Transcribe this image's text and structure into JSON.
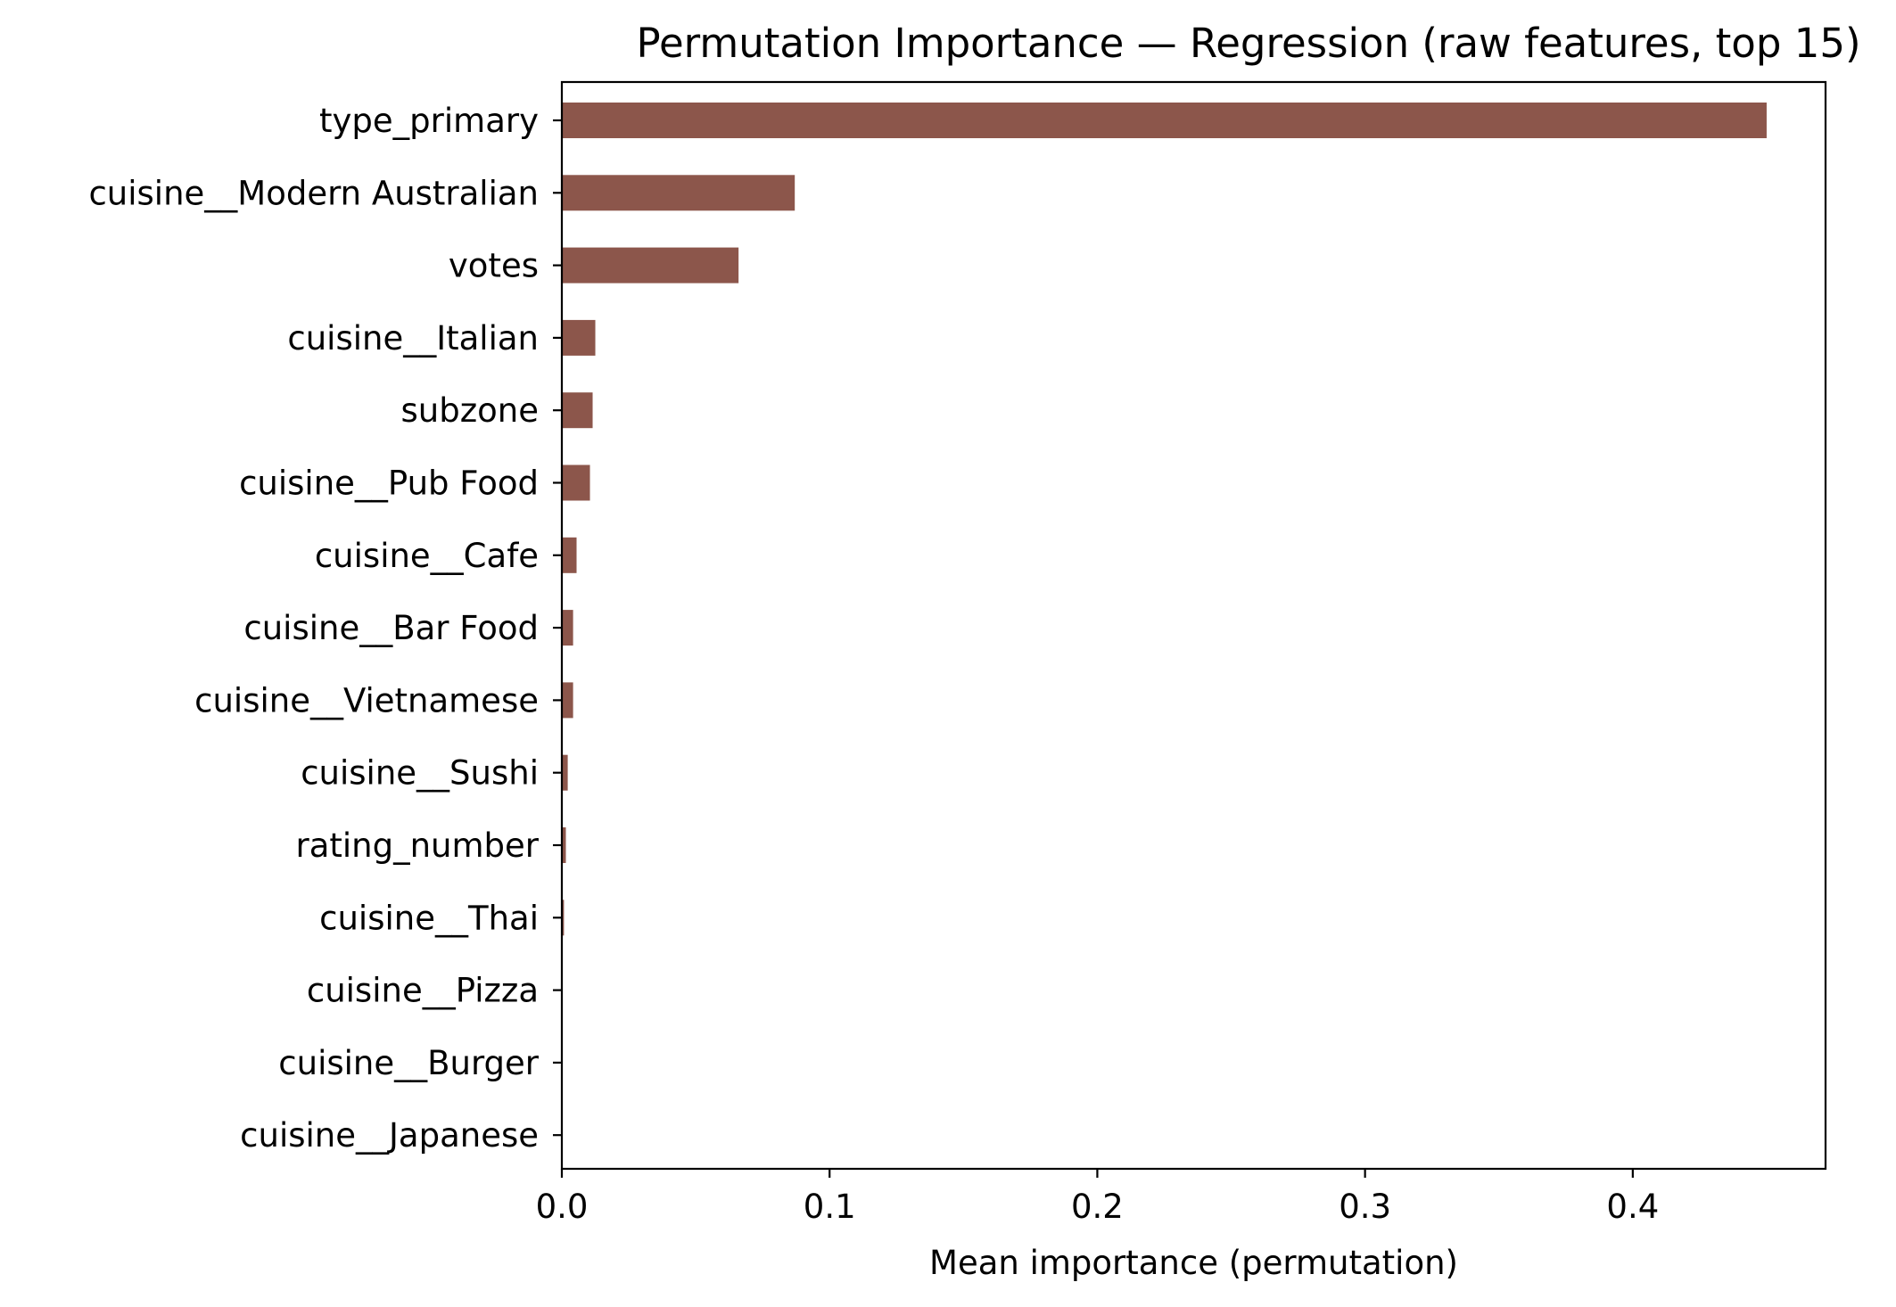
{
  "chart_data": {
    "type": "bar",
    "orientation": "horizontal",
    "title": "Permutation Importance — Regression (raw features, top 15)",
    "xlabel": "Mean importance (permutation)",
    "ylabel": "",
    "categories": [
      "type_primary",
      "cuisine__Modern Australian",
      "votes",
      "cuisine__Italian",
      "subzone",
      "cuisine__Pub Food",
      "cuisine__Cafe",
      "cuisine__Bar Food",
      "cuisine__Vietnamese",
      "cuisine__Sushi",
      "rating_number",
      "cuisine__Thai",
      "cuisine__Pizza",
      "cuisine__Burger",
      "cuisine__Japanese"
    ],
    "values": [
      0.45,
      0.087,
      0.066,
      0.0125,
      0.0115,
      0.0105,
      0.0055,
      0.0042,
      0.0042,
      0.0022,
      0.0015,
      0.0008,
      0.0002,
      0.0001,
      0.0001
    ],
    "xlim": [
      0,
      0.472
    ],
    "xticks": [
      "0.0",
      "0.1",
      "0.2",
      "0.3",
      "0.4"
    ],
    "xtick_values": [
      0,
      0.1,
      0.2,
      0.3,
      0.4
    ],
    "grid": false,
    "legend": "none",
    "bar_color": "#8c564b"
  }
}
